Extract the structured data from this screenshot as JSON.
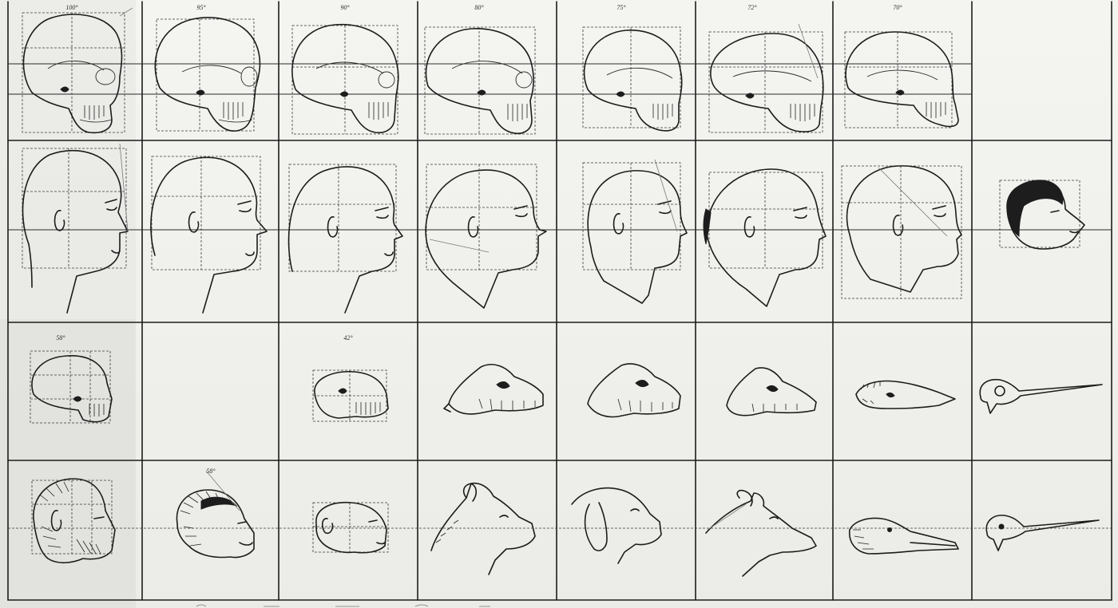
{
  "plate": {
    "description_free": true
  }
}
